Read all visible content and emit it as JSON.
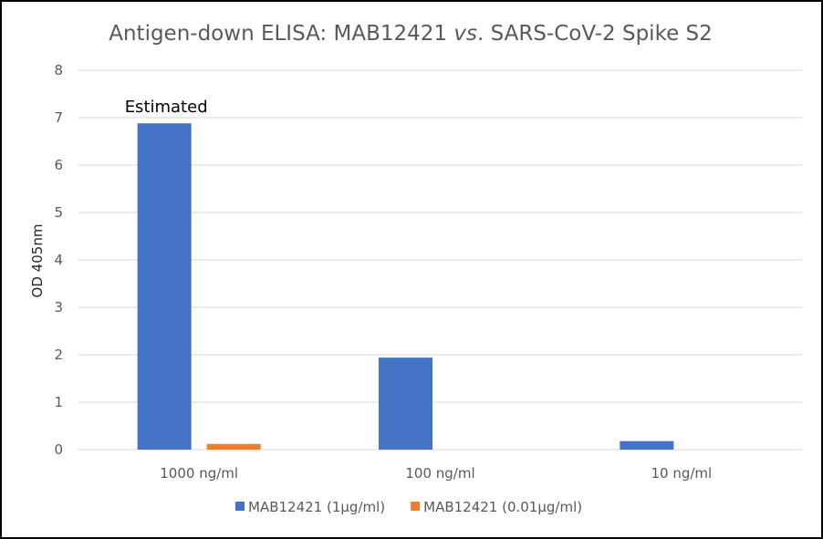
{
  "chart_data": {
    "type": "bar",
    "title": {
      "before": "Antigen-down ELISA: MAB12421 ",
      "italic": "vs",
      "after": ". SARS-CoV-2 Spike S2"
    },
    "xlabel": "",
    "ylabel": "OD 405nm",
    "ylim": [
      0,
      8
    ],
    "yticks": [
      "0",
      "1",
      "2",
      "3",
      "4",
      "5",
      "6",
      "7",
      "8"
    ],
    "grid": true,
    "legend_position": "bottom",
    "categories": [
      "1000 ng/ml",
      "100 ng/ml",
      "10 ng/ml"
    ],
    "series": [
      {
        "name": "MAB12421 (1μg/ml)",
        "color": "#4472C4",
        "values": [
          6.88,
          1.94,
          0.18
        ]
      },
      {
        "name": "MAB12421 (0.01μg/ml)",
        "color": "#ED7D31",
        "values": [
          0.12,
          0.0,
          0.0
        ]
      }
    ],
    "annotations": [
      {
        "text": "Estimated",
        "category": "1000 ng/ml",
        "series": 0
      }
    ]
  }
}
